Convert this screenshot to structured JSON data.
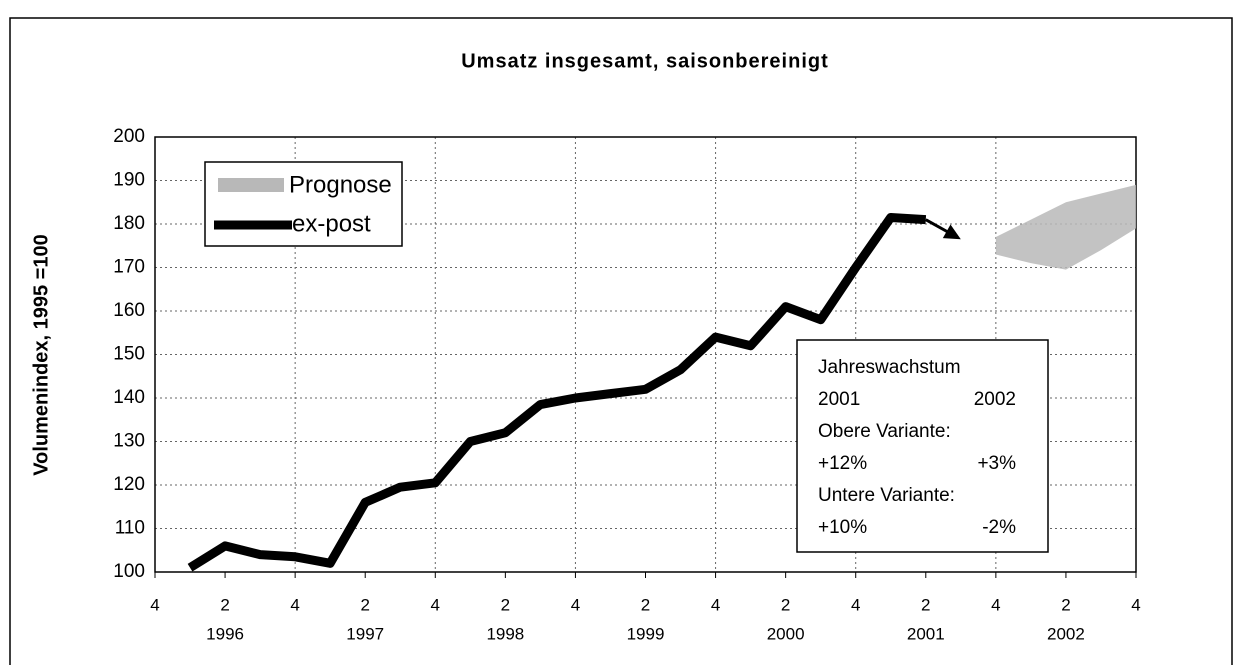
{
  "chart_data": {
    "type": "line",
    "title": "Umsatz insgesamt, saisonbereinigt",
    "y_label": "Volumenindex, 1995 =100",
    "categories": [
      "4",
      null,
      "2",
      null,
      "4",
      null,
      "2",
      null,
      "4",
      null,
      "2",
      null,
      "4",
      null,
      "2",
      null,
      "4",
      null,
      "2",
      null,
      "4",
      null,
      "2",
      null,
      "4",
      null,
      "2",
      null,
      "4"
    ],
    "year_labels": [
      "1996",
      "1997",
      "1998",
      "1999",
      "2000",
      "2001",
      "2002"
    ],
    "series": [
      {
        "name": "ex-post",
        "color": "#000000",
        "values": [
          null,
          101,
          106,
          104,
          103.5,
          102,
          116,
          119.5,
          120.5,
          130,
          132,
          138.5,
          140,
          141,
          142,
          146.5,
          154,
          152,
          161,
          158,
          170,
          181.5,
          181,
          null,
          null,
          null,
          null,
          null,
          null
        ],
        "arrow_value": 176.5
      },
      {
        "name": "Prognose",
        "color": "#b8b8b8",
        "upper": [
          null,
          null,
          null,
          null,
          null,
          null,
          null,
          null,
          null,
          null,
          null,
          null,
          null,
          null,
          null,
          null,
          null,
          null,
          null,
          null,
          null,
          null,
          null,
          null,
          177,
          181,
          185,
          187,
          189
        ],
        "lower": [
          null,
          null,
          null,
          null,
          null,
          null,
          null,
          null,
          null,
          null,
          null,
          null,
          null,
          null,
          null,
          null,
          null,
          null,
          null,
          null,
          null,
          null,
          null,
          null,
          173,
          171,
          169.5,
          174,
          179
        ]
      }
    ],
    "ylim": [
      100,
      200
    ],
    "yticks": [
      100,
      110,
      120,
      130,
      140,
      150,
      160,
      170,
      180,
      190,
      200
    ],
    "grid": true,
    "annotation": [
      "Jahreswachstum",
      [
        "2001",
        "2002"
      ],
      "Obere Variante:",
      [
        "+12%",
        "+3%"
      ],
      "Untere Variante:",
      [
        "+10%",
        "-2%"
      ]
    ]
  }
}
